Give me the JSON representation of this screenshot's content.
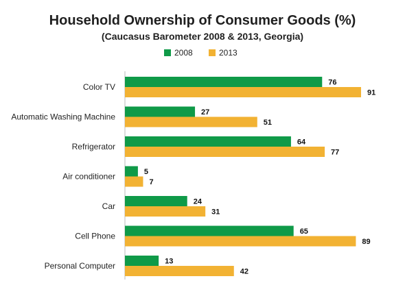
{
  "chart_data": {
    "type": "bar",
    "orientation": "horizontal",
    "title": "Household Ownership of Consumer Goods (%)",
    "subtitle": "(Caucasus Barometer 2008 & 2013, Georgia)",
    "categories": [
      "Color TV",
      "Automatic Washing Machine",
      "Refrigerator",
      "Air conditioner",
      "Car",
      "Cell Phone",
      "Personal Computer"
    ],
    "series": [
      {
        "name": "2008",
        "color": "#0f9a48",
        "values": [
          76,
          27,
          64,
          5,
          24,
          65,
          13
        ]
      },
      {
        "name": "2013",
        "color": "#f2b233",
        "values": [
          91,
          51,
          77,
          7,
          31,
          89,
          42
        ]
      }
    ],
    "xlim": [
      0,
      100
    ],
    "grid": false,
    "legend_position": "top",
    "data_labels": true
  }
}
